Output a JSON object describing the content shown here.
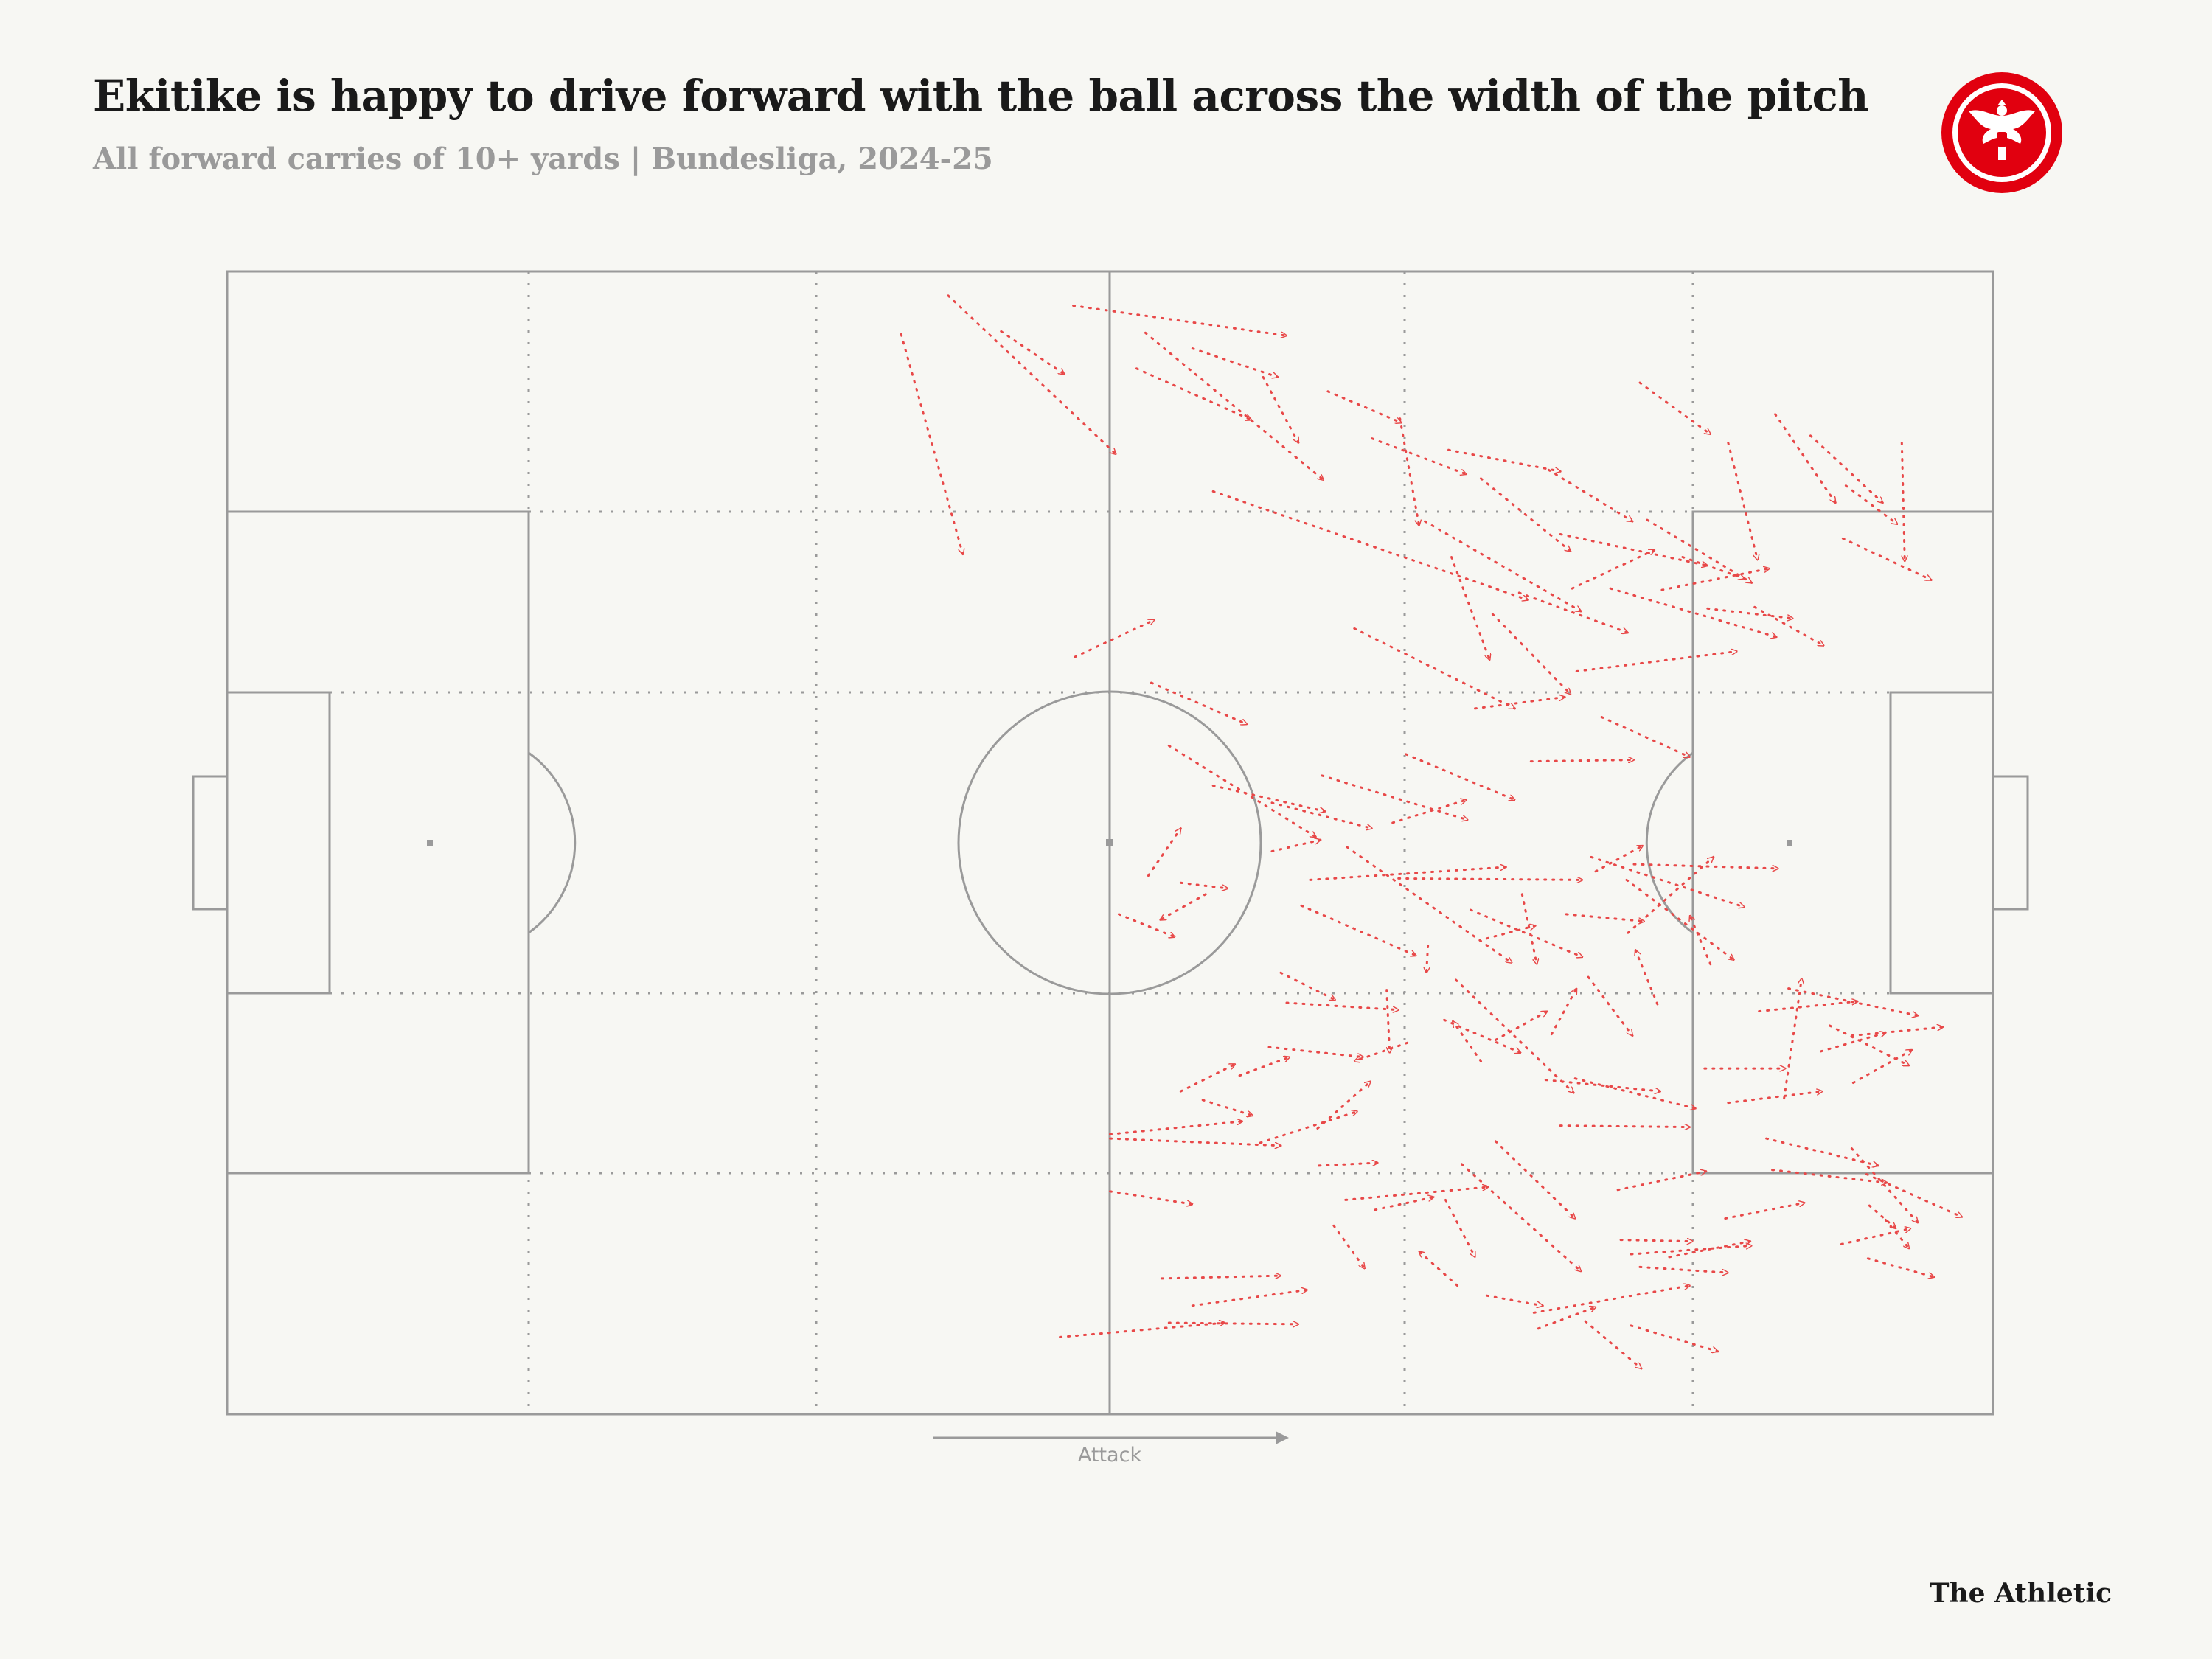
{
  "title": "Ekitike is happy to drive forward with the ball across the width of the pitch",
  "subtitle": "All forward carries of 10+ yards | Bundesliga, 2024-25",
  "brand": "The Athletic",
  "direction_label": "Attack",
  "colors": {
    "background": "#f7f7f3",
    "pitch_lines": "#9a9a9a",
    "carry": "#e84848",
    "logo_red": "#e1000f"
  },
  "icons": {
    "logo": "eintracht-frankfurt-crest-icon",
    "attack_arrow": "arrow-right-icon"
  },
  "chart_data": {
    "type": "pitch-arrows",
    "attack_direction": "right",
    "x_range": [
      0,
      120
    ],
    "y_range": [
      0,
      80
    ],
    "carries": [
      [
        49.0,
        1.7,
        60.4,
        12.8
      ],
      [
        45.8,
        4.4,
        50.0,
        19.8
      ],
      [
        52.6,
        4.2,
        56.9,
        7.2
      ],
      [
        57.5,
        2.4,
        72.0,
        4.5
      ],
      [
        62.4,
        4.3,
        74.5,
        14.6
      ],
      [
        65.6,
        5.4,
        71.4,
        7.4
      ],
      [
        70.4,
        7.4,
        72.8,
        12.0
      ],
      [
        61.8,
        6.8,
        69.6,
        10.4
      ],
      [
        74.8,
        8.4,
        79.8,
        10.6
      ],
      [
        79.7,
        10.3,
        81.0,
        17.8
      ],
      [
        77.8,
        11.7,
        84.2,
        14.2
      ],
      [
        83.0,
        12.5,
        90.6,
        14.0
      ],
      [
        85.2,
        14.5,
        91.3,
        19.6
      ],
      [
        89.8,
        13.9,
        95.5,
        17.5
      ],
      [
        96.0,
        7.8,
        100.8,
        11.4
      ],
      [
        102.0,
        12.0,
        104.0,
        20.2
      ],
      [
        105.2,
        10.0,
        109.3,
        16.2
      ],
      [
        107.6,
        11.5,
        112.5,
        16.2
      ],
      [
        110.0,
        15.0,
        113.5,
        17.7
      ],
      [
        113.8,
        12.0,
        114.0,
        20.3
      ],
      [
        109.8,
        18.7,
        115.8,
        21.6
      ],
      [
        103.8,
        23.5,
        108.5,
        26.2
      ],
      [
        100.6,
        23.6,
        106.4,
        24.3
      ],
      [
        98.9,
        20.0,
        103.1,
        21.5
      ],
      [
        96.5,
        17.4,
        103.6,
        21.8
      ],
      [
        90.6,
        18.4,
        100.6,
        20.6
      ],
      [
        81.4,
        17.5,
        92.0,
        23.8
      ],
      [
        83.2,
        20.0,
        85.8,
        27.2
      ],
      [
        87.8,
        22.5,
        95.2,
        25.3
      ],
      [
        91.4,
        22.2,
        97.0,
        19.5
      ],
      [
        94.0,
        22.2,
        105.3,
        25.6
      ],
      [
        97.5,
        22.3,
        104.8,
        20.8
      ],
      [
        86.0,
        24.0,
        91.3,
        29.6
      ],
      [
        76.6,
        25.0,
        87.5,
        30.6
      ],
      [
        67.0,
        15.4,
        88.4,
        23.0
      ],
      [
        57.6,
        27.0,
        63.0,
        24.4
      ],
      [
        62.8,
        28.8,
        69.3,
        31.7
      ],
      [
        64.0,
        33.2,
        74.0,
        39.6
      ],
      [
        74.4,
        35.3,
        84.3,
        38.4
      ],
      [
        71.0,
        37.2,
        77.8,
        39.0
      ],
      [
        80.1,
        33.8,
        87.5,
        37.0
      ],
      [
        79.2,
        38.6,
        84.2,
        37.0
      ],
      [
        76.1,
        40.3,
        87.3,
        48.4
      ],
      [
        79.6,
        42.5,
        92.1,
        42.6
      ],
      [
        84.8,
        30.6,
        90.9,
        29.8
      ],
      [
        93.4,
        31.2,
        99.4,
        34.0
      ],
      [
        91.7,
        28.0,
        102.6,
        26.6
      ],
      [
        88.6,
        34.3,
        95.6,
        34.2
      ],
      [
        92.7,
        41.0,
        103.1,
        44.5
      ],
      [
        95.6,
        41.5,
        105.4,
        41.8
      ],
      [
        85.6,
        46.7,
        88.9,
        45.8
      ],
      [
        83.5,
        49.6,
        91.5,
        57.5
      ],
      [
        72.0,
        51.2,
        79.6,
        51.7
      ],
      [
        70.8,
        54.3,
        77.2,
        55.0
      ],
      [
        68.8,
        56.3,
        72.2,
        55.0
      ],
      [
        64.8,
        57.4,
        68.5,
        55.5
      ],
      [
        66.3,
        58.0,
        69.7,
        59.1
      ],
      [
        60.0,
        60.4,
        69.0,
        59.5
      ],
      [
        60.0,
        60.7,
        71.6,
        61.2
      ],
      [
        60.0,
        64.4,
        65.6,
        65.3
      ],
      [
        63.5,
        70.5,
        71.6,
        70.3
      ],
      [
        65.6,
        72.4,
        73.4,
        71.3
      ],
      [
        64.0,
        73.6,
        72.8,
        73.7
      ],
      [
        56.6,
        74.6,
        67.8,
        73.6
      ],
      [
        70.2,
        61.0,
        76.8,
        58.8
      ],
      [
        74.1,
        60.0,
        77.7,
        56.7
      ],
      [
        74.2,
        62.6,
        78.2,
        62.4
      ],
      [
        76.0,
        65.0,
        85.7,
        64.1
      ],
      [
        83.9,
        62.5,
        92.0,
        70.0
      ],
      [
        86.2,
        60.9,
        91.6,
        66.3
      ],
      [
        89.6,
        56.6,
        97.4,
        57.4
      ],
      [
        91.6,
        56.5,
        99.8,
        58.6
      ],
      [
        90.6,
        59.8,
        99.4,
        59.9
      ],
      [
        94.5,
        64.3,
        100.5,
        63.0
      ],
      [
        94.7,
        67.8,
        99.6,
        67.9
      ],
      [
        96.0,
        69.7,
        102.0,
        70.1
      ],
      [
        98.0,
        69.0,
        103.5,
        67.9
      ],
      [
        101.8,
        66.3,
        107.2,
        65.2
      ],
      [
        105.0,
        62.9,
        112.8,
        63.8
      ],
      [
        104.6,
        60.7,
        112.2,
        62.6
      ],
      [
        102.0,
        58.2,
        108.4,
        57.4
      ],
      [
        100.4,
        55.8,
        105.9,
        55.8
      ],
      [
        104.1,
        51.8,
        110.8,
        51.1
      ],
      [
        106.1,
        50.2,
        114.9,
        52.1
      ],
      [
        108.9,
        52.8,
        114.3,
        55.6
      ],
      [
        108.3,
        54.6,
        112.7,
        53.3
      ],
      [
        110.4,
        53.5,
        116.6,
        52.9
      ],
      [
        110.5,
        56.8,
        114.5,
        54.5
      ],
      [
        105.8,
        57.9,
        107.0,
        49.5
      ],
      [
        110.4,
        61.4,
        114.9,
        66.6
      ],
      [
        111.4,
        63.2,
        117.9,
        66.2
      ],
      [
        112.7,
        66.4,
        114.3,
        68.4
      ],
      [
        109.7,
        68.1,
        114.4,
        67.0
      ],
      [
        111.5,
        69.1,
        116.0,
        70.4
      ],
      [
        111.6,
        65.4,
        113.4,
        67.0
      ],
      [
        95.4,
        68.8,
        103.6,
        68.2
      ],
      [
        88.8,
        72.9,
        99.4,
        71.0
      ],
      [
        85.6,
        71.7,
        89.4,
        72.4
      ],
      [
        83.6,
        71.0,
        81.0,
        68.6
      ],
      [
        78.0,
        65.7,
        82.0,
        64.8
      ],
      [
        75.2,
        66.8,
        77.3,
        69.8
      ],
      [
        82.8,
        65.0,
        84.8,
        69.0
      ],
      [
        89.1,
        74.0,
        93.0,
        72.5
      ],
      [
        92.3,
        73.5,
        96.1,
        76.8
      ],
      [
        95.4,
        73.8,
        101.3,
        75.6
      ],
      [
        84.5,
        44.7,
        92.1,
        48.0
      ],
      [
        88.0,
        43.6,
        89.0,
        48.5
      ],
      [
        91.0,
        45.0,
        96.3,
        45.5
      ],
      [
        95.2,
        46.3,
        101.0,
        41.0
      ],
      [
        95.1,
        42.6,
        102.4,
        48.2
      ],
      [
        100.8,
        48.5,
        99.4,
        45.1
      ],
      [
        97.2,
        51.3,
        95.7,
        47.5
      ],
      [
        92.5,
        49.4,
        95.5,
        53.5
      ],
      [
        90.0,
        53.4,
        91.7,
        50.2
      ],
      [
        85.2,
        55.3,
        83.3,
        52.5
      ],
      [
        86.2,
        53.8,
        89.7,
        51.8
      ],
      [
        78.8,
        50.3,
        79.0,
        54.7
      ],
      [
        81.6,
        47.2,
        81.5,
        49.1
      ],
      [
        82.7,
        52.4,
        87.9,
        54.7
      ],
      [
        80.2,
        54.0,
        76.6,
        55.3
      ],
      [
        73.0,
        44.4,
        80.8,
        47.9
      ],
      [
        73.6,
        42.6,
        86.9,
        41.7
      ],
      [
        71.0,
        40.6,
        74.3,
        39.8
      ],
      [
        67.0,
        36.0,
        74.6,
        37.8
      ],
      [
        64.8,
        42.8,
        68.0,
        43.2
      ],
      [
        60.6,
        45.0,
        64.4,
        46.6
      ],
      [
        62.6,
        42.3,
        64.8,
        39.0
      ],
      [
        66.5,
        43.6,
        63.4,
        45.4
      ],
      [
        71.6,
        49.1,
        75.3,
        51.0
      ],
      [
        93.0,
        42.0,
        96.2,
        40.2
      ]
    ]
  }
}
